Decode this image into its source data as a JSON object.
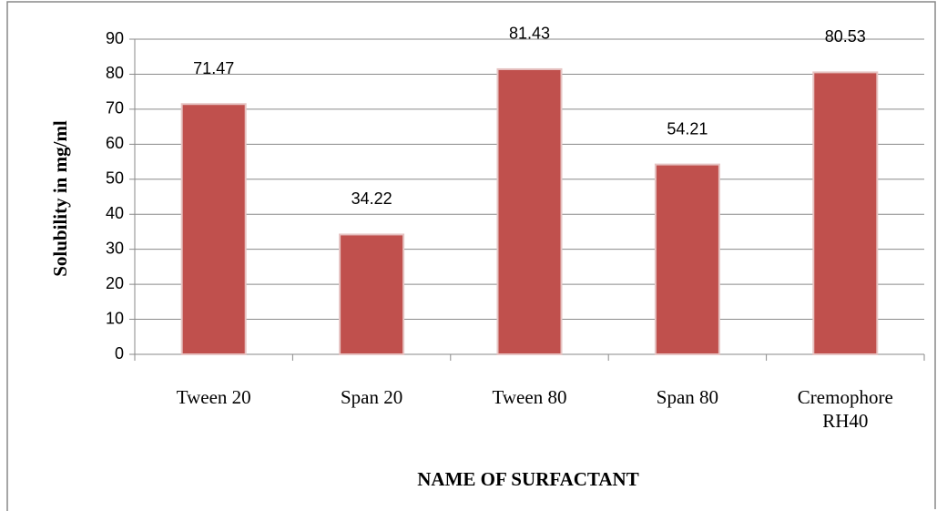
{
  "chart_data": {
    "type": "bar",
    "categories": [
      "Tween 20",
      "Span 20",
      "Tween 80",
      "Span 80",
      "Cremophore RH40"
    ],
    "values": [
      71.47,
      34.22,
      81.43,
      54.21,
      80.53
    ],
    "color": "#c0504d",
    "ylim": [
      0,
      90
    ],
    "yticks": [
      0,
      10,
      20,
      30,
      40,
      50,
      60,
      70,
      80,
      90
    ],
    "grid": true,
    "y_label": "Solubility in mg/ml",
    "x_label": "NAME OF SURFACTANT"
  }
}
